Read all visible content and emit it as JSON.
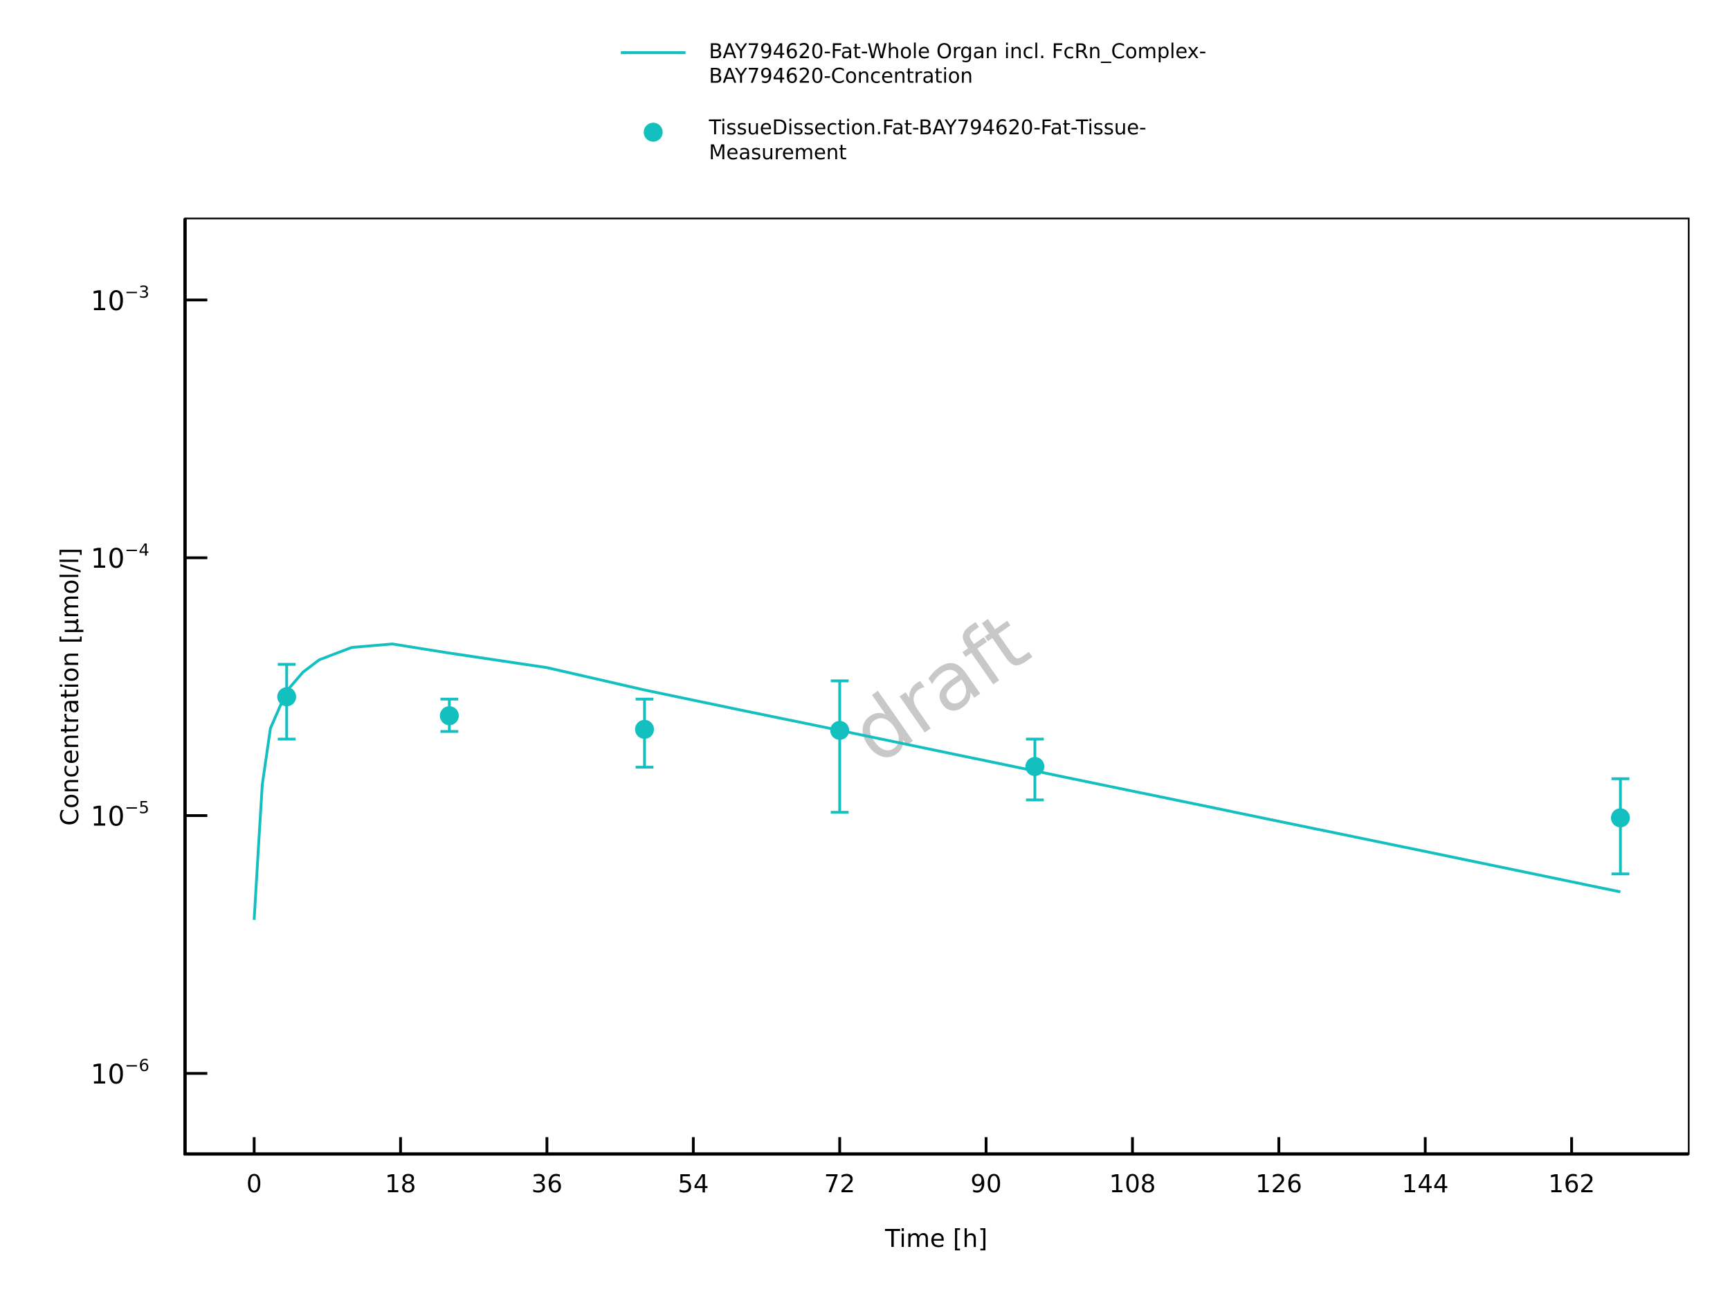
{
  "chart_data": {
    "type": "line",
    "yscale": "log",
    "xlabel": "Time [h]",
    "ylabel": "Concentration [µmol/l]",
    "watermark": "draft",
    "xlim": [
      -8.5,
      176.4
    ],
    "xticks": [
      0,
      18,
      36,
      54,
      72,
      90,
      108,
      126,
      144,
      162
    ],
    "ylim": [
      4.87e-07,
      0.00207
    ],
    "yticks": [
      {
        "value": 0.001,
        "label": "10",
        "exponent": "−3"
      },
      {
        "value": 0.0001,
        "label": "10",
        "exponent": "−4"
      },
      {
        "value": 1e-05,
        "label": "10",
        "exponent": "−5"
      },
      {
        "value": 1e-06,
        "label": "10",
        "exponent": "−6"
      }
    ],
    "series": [
      {
        "name": "BAY794620-Fat-Whole Organ incl. FcRn_Complex-BAY794620-Concentration",
        "type": "line",
        "color": "#14bfbf",
        "x": [
          0,
          0.5,
          1,
          2,
          4,
          6,
          8,
          12,
          17,
          24,
          36,
          48,
          60,
          72,
          96,
          120,
          144,
          168
        ],
        "values": [
          3.94e-06,
          7.3e-06,
          1.32e-05,
          2.18e-05,
          3.04e-05,
          3.6e-05,
          4.02e-05,
          4.49e-05,
          4.63e-05,
          4.27e-05,
          3.75e-05,
          3.07e-05,
          2.56e-05,
          2.14e-05,
          1.49e-05,
          1.04e-05,
          7.26e-06,
          5.06e-06
        ]
      },
      {
        "name": "TissueDissection.Fat-BAY794620-Fat-Tissue-Measurement",
        "type": "scatter",
        "color": "#14bfbf",
        "x": [
          4,
          24,
          48,
          72,
          96,
          168
        ],
        "values": [
          2.89e-05,
          2.44e-05,
          2.16e-05,
          2.14e-05,
          1.55e-05,
          9.8e-06
        ],
        "lower": [
          1.98e-05,
          2.12e-05,
          1.54e-05,
          1.03e-05,
          1.15e-05,
          5.94e-06
        ],
        "upper": [
          3.86e-05,
          2.83e-05,
          2.83e-05,
          3.33e-05,
          1.98e-05,
          1.39e-05
        ]
      }
    ]
  }
}
